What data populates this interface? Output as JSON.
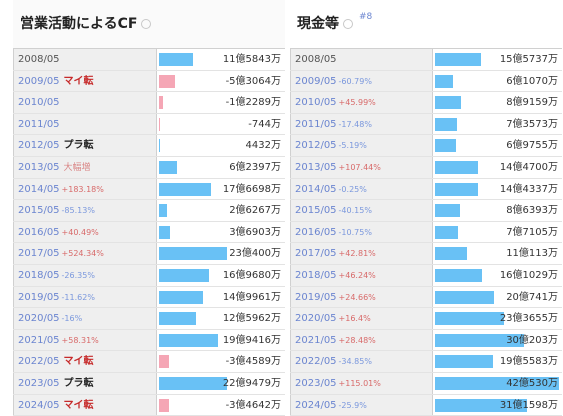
{
  "left": {
    "title": "営業活動によるCF",
    "rows": [
      {
        "year": "2008/05",
        "pct": "",
        "pct_dir": "",
        "status": "",
        "status_style": "",
        "value": "11億5843万",
        "amount": 11.58,
        "sign": "pos"
      },
      {
        "year": "2009/05",
        "pct": "",
        "pct_dir": "",
        "status": "マイ転",
        "status_style": "red",
        "value": "-5億3064万",
        "amount": 5.31,
        "sign": "neg"
      },
      {
        "year": "2010/05",
        "pct": "",
        "pct_dir": "",
        "status": "",
        "status_style": "",
        "value": "-1億2289万",
        "amount": 1.23,
        "sign": "neg"
      },
      {
        "year": "2011/05",
        "pct": "",
        "pct_dir": "",
        "status": "",
        "status_style": "",
        "value": "-744万",
        "amount": 0.07,
        "sign": "neg"
      },
      {
        "year": "2012/05",
        "pct": "",
        "pct_dir": "",
        "status": "プラ転",
        "status_style": "black",
        "value": "4432万",
        "amount": 0.44,
        "sign": "pos"
      },
      {
        "year": "2013/05",
        "pct": "",
        "pct_dir": "",
        "status": "大幅増",
        "status_style": "light",
        "value": "6億2397万",
        "amount": 6.24,
        "sign": "pos"
      },
      {
        "year": "2014/05",
        "pct": "+183.18%",
        "pct_dir": "up",
        "status": "",
        "status_style": "",
        "value": "17億6698万",
        "amount": 17.67,
        "sign": "pos"
      },
      {
        "year": "2015/05",
        "pct": "-85.13%",
        "pct_dir": "down",
        "status": "",
        "status_style": "",
        "value": "2億6267万",
        "amount": 2.63,
        "sign": "pos"
      },
      {
        "year": "2016/05",
        "pct": "+40.49%",
        "pct_dir": "up",
        "status": "",
        "status_style": "",
        "value": "3億6903万",
        "amount": 3.69,
        "sign": "pos"
      },
      {
        "year": "2017/05",
        "pct": "+524.34%",
        "pct_dir": "up",
        "status": "",
        "status_style": "",
        "value": "23億400万",
        "amount": 23.04,
        "sign": "pos"
      },
      {
        "year": "2018/05",
        "pct": "-26.35%",
        "pct_dir": "down",
        "status": "",
        "status_style": "",
        "value": "16億9680万",
        "amount": 16.97,
        "sign": "pos"
      },
      {
        "year": "2019/05",
        "pct": "-11.62%",
        "pct_dir": "down",
        "status": "",
        "status_style": "",
        "value": "14億9961万",
        "amount": 15.0,
        "sign": "pos"
      },
      {
        "year": "2020/05",
        "pct": "-16%",
        "pct_dir": "down",
        "status": "",
        "status_style": "",
        "value": "12億5962万",
        "amount": 12.6,
        "sign": "pos"
      },
      {
        "year": "2021/05",
        "pct": "+58.31%",
        "pct_dir": "up",
        "status": "",
        "status_style": "",
        "value": "19億9416万",
        "amount": 19.94,
        "sign": "pos"
      },
      {
        "year": "2022/05",
        "pct": "",
        "pct_dir": "",
        "status": "マイ転",
        "status_style": "red",
        "value": "-3億4589万",
        "amount": 3.46,
        "sign": "neg"
      },
      {
        "year": "2023/05",
        "pct": "",
        "pct_dir": "",
        "status": "プラ転",
        "status_style": "black",
        "value": "22億9479万",
        "amount": 22.95,
        "sign": "pos"
      },
      {
        "year": "2024/05",
        "pct": "",
        "pct_dir": "",
        "status": "マイ転",
        "status_style": "red",
        "value": "-3億4642万",
        "amount": 3.46,
        "sign": "neg"
      }
    ]
  },
  "right": {
    "title": "現金等",
    "badge": "#8",
    "rows": [
      {
        "year": "2008/05",
        "pct": "",
        "pct_dir": "",
        "value": "15億5737万",
        "amount": 15.57,
        "sign": "pos"
      },
      {
        "year": "2009/05",
        "pct": "-60.79%",
        "pct_dir": "down",
        "value": "6億1070万",
        "amount": 6.11,
        "sign": "pos"
      },
      {
        "year": "2010/05",
        "pct": "+45.99%",
        "pct_dir": "up",
        "value": "8億9159万",
        "amount": 8.92,
        "sign": "pos"
      },
      {
        "year": "2011/05",
        "pct": "-17.48%",
        "pct_dir": "down",
        "value": "7億3573万",
        "amount": 7.36,
        "sign": "pos"
      },
      {
        "year": "2012/05",
        "pct": "-5.19%",
        "pct_dir": "down",
        "value": "6億9755万",
        "amount": 6.98,
        "sign": "pos"
      },
      {
        "year": "2013/05",
        "pct": "+107.44%",
        "pct_dir": "up",
        "value": "14億4700万",
        "amount": 14.47,
        "sign": "pos"
      },
      {
        "year": "2014/05",
        "pct": "-0.25%",
        "pct_dir": "down",
        "value": "14億4337万",
        "amount": 14.43,
        "sign": "pos"
      },
      {
        "year": "2015/05",
        "pct": "-40.15%",
        "pct_dir": "down",
        "value": "8億6393万",
        "amount": 8.64,
        "sign": "pos"
      },
      {
        "year": "2016/05",
        "pct": "-10.75%",
        "pct_dir": "down",
        "value": "7億7105万",
        "amount": 7.71,
        "sign": "pos"
      },
      {
        "year": "2017/05",
        "pct": "+42.81%",
        "pct_dir": "up",
        "value": "11億113万",
        "amount": 11.01,
        "sign": "pos"
      },
      {
        "year": "2018/05",
        "pct": "+46.24%",
        "pct_dir": "up",
        "value": "16億1029万",
        "amount": 16.1,
        "sign": "pos"
      },
      {
        "year": "2019/05",
        "pct": "+24.66%",
        "pct_dir": "up",
        "value": "20億741万",
        "amount": 20.07,
        "sign": "pos"
      },
      {
        "year": "2020/05",
        "pct": "+16.4%",
        "pct_dir": "up",
        "value": "23億3655万",
        "amount": 23.37,
        "sign": "pos"
      },
      {
        "year": "2021/05",
        "pct": "+28.48%",
        "pct_dir": "up",
        "value": "30億203万",
        "amount": 30.02,
        "sign": "pos"
      },
      {
        "year": "2022/05",
        "pct": "-34.85%",
        "pct_dir": "down",
        "value": "19億5583万",
        "amount": 19.56,
        "sign": "pos"
      },
      {
        "year": "2023/05",
        "pct": "+115.01%",
        "pct_dir": "up",
        "value": "42億530万",
        "amount": 42.05,
        "sign": "pos"
      },
      {
        "year": "2024/05",
        "pct": "-25.9%",
        "pct_dir": "down",
        "value": "31億1598万",
        "amount": 31.16,
        "sign": "pos"
      }
    ]
  },
  "colors": {
    "positive_bar": "#69c1f5",
    "negative_bar": "#f5a6b5",
    "up_text": "#d86a6a",
    "down_text": "#7b98dd",
    "status_red": "#c62a2a"
  }
}
